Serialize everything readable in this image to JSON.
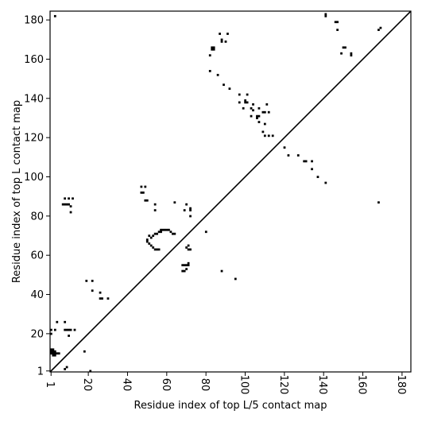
{
  "chart_data": {
    "type": "heatmap",
    "title": "",
    "xlabel": "Residue index of top L/5 contact map",
    "ylabel": "Residue index of top L contact map",
    "xlim": [
      1,
      184
    ],
    "ylim": [
      1,
      184
    ],
    "x_ticks": [
      1,
      20,
      40,
      60,
      80,
      100,
      120,
      140,
      160,
      180
    ],
    "y_ticks": [
      1,
      20,
      40,
      60,
      80,
      100,
      120,
      140,
      160,
      180
    ],
    "grid": false,
    "diagonal_line": {
      "from": [
        1,
        1
      ],
      "to": [
        184,
        184
      ]
    },
    "cell_color": "#000000",
    "lower_triangle_contacts": [
      [
        1,
        10
      ],
      [
        1,
        11
      ],
      [
        1,
        12
      ],
      [
        1,
        20
      ],
      [
        1,
        22
      ],
      [
        2,
        9
      ],
      [
        2,
        10
      ],
      [
        2,
        11
      ],
      [
        2,
        12
      ],
      [
        3,
        9
      ],
      [
        3,
        10
      ],
      [
        3,
        11
      ],
      [
        3,
        22
      ],
      [
        4,
        10
      ],
      [
        4,
        26
      ],
      [
        5,
        10
      ],
      [
        8,
        2
      ],
      [
        8,
        22
      ],
      [
        8,
        26
      ],
      [
        9,
        3
      ],
      [
        9,
        22
      ],
      [
        10,
        19
      ],
      [
        10,
        22
      ],
      [
        11,
        22
      ],
      [
        13,
        22
      ],
      [
        18,
        11
      ],
      [
        21,
        1
      ],
      [
        26,
        38
      ],
      [
        27,
        38
      ],
      [
        30,
        38
      ]
    ],
    "upper_triangle_contacts": [
      [
        3,
        182
      ],
      [
        7,
        86
      ],
      [
        8,
        86
      ],
      [
        8,
        89
      ],
      [
        9,
        86
      ],
      [
        10,
        86
      ],
      [
        10,
        89
      ],
      [
        11,
        82
      ],
      [
        11,
        85
      ],
      [
        12,
        89
      ],
      [
        19,
        47
      ],
      [
        22,
        42
      ],
      [
        22,
        47
      ],
      [
        26,
        41
      ],
      [
        47,
        92
      ],
      [
        47,
        95
      ],
      [
        48,
        92
      ],
      [
        49,
        88
      ],
      [
        49,
        95
      ],
      [
        50,
        67
      ],
      [
        50,
        68
      ],
      [
        50,
        88
      ],
      [
        51,
        66
      ],
      [
        51,
        70
      ],
      [
        52,
        65
      ],
      [
        52,
        69
      ],
      [
        53,
        64
      ],
      [
        53,
        70
      ],
      [
        54,
        63
      ],
      [
        54,
        71
      ],
      [
        54,
        83
      ],
      [
        54,
        86
      ],
      [
        55,
        63
      ],
      [
        55,
        71
      ],
      [
        56,
        63
      ],
      [
        56,
        72
      ],
      [
        57,
        72
      ],
      [
        57,
        73
      ],
      [
        58,
        73
      ],
      [
        59,
        73
      ],
      [
        60,
        73
      ],
      [
        61,
        73
      ],
      [
        62,
        72
      ],
      [
        63,
        71
      ],
      [
        64,
        71
      ],
      [
        64,
        87
      ],
      [
        68,
        52
      ],
      [
        68,
        55
      ],
      [
        69,
        52
      ],
      [
        69,
        55
      ],
      [
        69,
        83
      ],
      [
        70,
        53
      ],
      [
        70,
        55
      ],
      [
        70,
        64
      ],
      [
        70,
        86
      ],
      [
        71,
        55
      ],
      [
        71,
        56
      ],
      [
        71,
        63
      ],
      [
        71,
        65
      ],
      [
        72,
        63
      ],
      [
        72,
        80
      ],
      [
        72,
        83
      ],
      [
        72,
        84
      ],
      [
        80,
        72
      ],
      [
        82,
        154
      ],
      [
        82,
        162
      ],
      [
        83,
        165
      ],
      [
        83,
        166
      ],
      [
        84,
        165
      ],
      [
        84,
        166
      ],
      [
        86,
        152
      ],
      [
        87,
        173
      ],
      [
        88,
        52
      ],
      [
        88,
        169
      ],
      [
        88,
        170
      ],
      [
        89,
        147
      ],
      [
        90,
        169
      ],
      [
        91,
        173
      ],
      [
        92,
        145
      ],
      [
        95,
        48
      ],
      [
        97,
        138
      ],
      [
        97,
        142
      ],
      [
        99,
        135
      ],
      [
        100,
        138
      ],
      [
        100,
        139
      ],
      [
        101,
        138
      ],
      [
        101,
        142
      ],
      [
        103,
        131
      ],
      [
        103,
        135
      ],
      [
        104,
        134
      ],
      [
        104,
        137
      ],
      [
        106,
        130
      ],
      [
        106,
        131
      ],
      [
        107,
        128
      ],
      [
        107,
        131
      ],
      [
        107,
        135
      ],
      [
        109,
        123
      ],
      [
        109,
        133
      ],
      [
        110,
        121
      ],
      [
        110,
        127
      ],
      [
        110,
        133
      ],
      [
        111,
        137
      ],
      [
        112,
        121
      ],
      [
        112,
        133
      ],
      [
        114,
        121
      ],
      [
        120,
        115
      ],
      [
        122,
        111
      ],
      [
        127,
        111
      ],
      [
        130,
        108
      ],
      [
        131,
        108
      ],
      [
        134,
        104
      ],
      [
        134,
        108
      ],
      [
        137,
        100
      ],
      [
        141,
        97
      ],
      [
        141,
        182
      ],
      [
        141,
        183
      ],
      [
        146,
        179
      ],
      [
        147,
        175
      ],
      [
        147,
        179
      ],
      [
        149,
        163
      ],
      [
        150,
        166
      ],
      [
        151,
        166
      ],
      [
        154,
        162
      ],
      [
        154,
        163
      ],
      [
        168,
        87
      ],
      [
        168,
        175
      ],
      [
        169,
        176
      ]
    ]
  }
}
